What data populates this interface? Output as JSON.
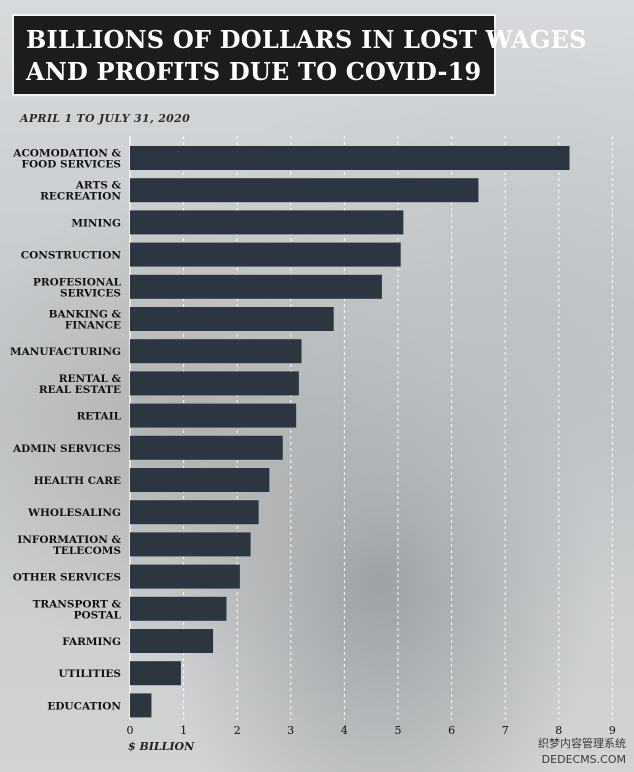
{
  "chart_data": {
    "type": "bar",
    "orientation": "horizontal",
    "title": "BILLIONS OF DOLLARS IN LOST WAGES AND PROFITS DUE TO COVID-19",
    "title_lines": [
      "BILLIONS OF DOLLARS IN LOST WAGES",
      "AND PROFITS DUE TO COVID-19"
    ],
    "subtitle": "APRIL 1 TO JULY 31, 2020",
    "xlabel": "$ BILLION",
    "ylabel": "",
    "xlim": [
      0,
      9
    ],
    "xticks": [
      "0",
      "1",
      "2",
      "3",
      "4",
      "5",
      "6",
      "7",
      "8",
      "9"
    ],
    "grid": "vertical dashed",
    "bar_color": "#2b3640",
    "categories": [
      [
        "ACOMODATION &",
        "FOOD SERVICES"
      ],
      [
        "ARTS &",
        "RECREATION"
      ],
      [
        "MINING"
      ],
      [
        "CONSTRUCTION"
      ],
      [
        "PROFESIONAL",
        "SERVICES"
      ],
      [
        "BANKING &",
        "FINANCE"
      ],
      [
        "MANUFACTURING"
      ],
      [
        "RENTAL &",
        "REAL ESTATE"
      ],
      [
        "RETAIL"
      ],
      [
        "ADMIN SERVICES"
      ],
      [
        "HEALTH CARE"
      ],
      [
        "WHOLESALING"
      ],
      [
        "INFORMATION &",
        "TELECOMS"
      ],
      [
        "OTHER SERVICES"
      ],
      [
        "TRANSPORT &",
        "POSTAL"
      ],
      [
        "FARMING"
      ],
      [
        "UTILITIES"
      ],
      [
        "EDUCATION"
      ]
    ],
    "values": [
      8.2,
      6.5,
      5.1,
      5.05,
      4.7,
      3.8,
      3.2,
      3.15,
      3.1,
      2.85,
      2.6,
      2.4,
      2.25,
      2.05,
      1.8,
      1.55,
      0.95,
      0.4
    ]
  },
  "watermark": {
    "line1": "织梦内容管理系统",
    "line2": "DEDECMS.COM"
  }
}
